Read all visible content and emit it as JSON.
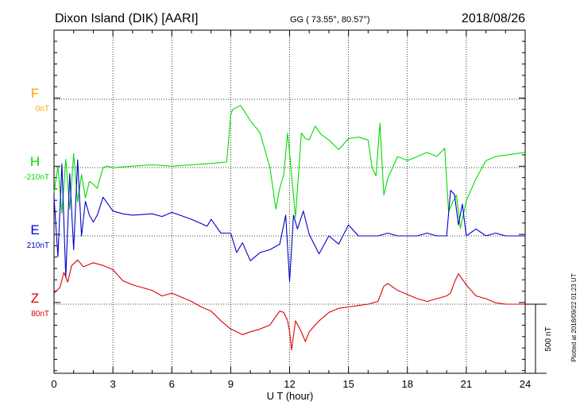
{
  "header": {
    "station": "Dixon Island (DIK)  [AARI]",
    "coords": "GG ( 73.55°,  80.57°)",
    "date": "2018/08/26"
  },
  "footer": {
    "plotted": "Plotted at 2018/09/22 01:23 UT"
  },
  "chart_data": {
    "type": "line",
    "title": "Dixon Island (DIK)  [AARI]",
    "xlabel": "U T (hour)",
    "xlim": [
      0,
      24
    ],
    "xticks": [
      0,
      3,
      6,
      9,
      12,
      15,
      18,
      21,
      24
    ],
    "scale_bar": {
      "label": "500 nT",
      "value_nT": 500
    },
    "grid": true,
    "panel_span_nT": 1500,
    "series": [
      {
        "name": "F",
        "baseline_label": "0nT",
        "color": "#ffa500",
        "x": [],
        "y": []
      },
      {
        "name": "H",
        "baseline_label": "-210nT",
        "color": "#00dd00",
        "x": [
          0,
          0.2,
          0.4,
          0.6,
          0.8,
          1.0,
          1.2,
          1.4,
          1.6,
          1.8,
          2.0,
          2.2,
          2.5,
          2.7,
          3.0,
          4.0,
          5.0,
          6.0,
          7.0,
          8.0,
          8.8,
          9.0,
          9.1,
          9.5,
          10.0,
          10.5,
          11.0,
          11.3,
          11.5,
          11.7,
          11.9,
          12.0,
          12.3,
          12.6,
          12.8,
          13.0,
          13.3,
          13.6,
          14.0,
          14.5,
          15.0,
          15.5,
          16.0,
          16.2,
          16.4,
          16.6,
          16.8,
          17.0,
          17.5,
          18.0,
          18.5,
          19.0,
          19.5,
          19.9,
          20.1,
          20.3,
          20.5,
          20.7,
          21.0,
          21.5,
          22.0,
          22.5,
          23.0,
          23.5,
          24.0
        ],
        "y": [
          -180,
          10,
          -330,
          60,
          -300,
          100,
          -250,
          -50,
          -220,
          -100,
          -120,
          -150,
          0,
          10,
          0,
          10,
          20,
          10,
          20,
          30,
          40,
          380,
          420,
          450,
          340,
          250,
          0,
          -300,
          -150,
          -50,
          250,
          100,
          -360,
          250,
          210,
          200,
          300,
          240,
          200,
          130,
          210,
          220,
          200,
          0,
          -60,
          320,
          -200,
          -80,
          80,
          50,
          80,
          110,
          80,
          140,
          -320,
          -250,
          -200,
          -440,
          -240,
          -80,
          50,
          80,
          90,
          100,
          110
        ]
      },
      {
        "name": "E",
        "baseline_label": "210nT",
        "color": "#0000cc",
        "x": [
          0,
          0.2,
          0.4,
          0.6,
          0.8,
          1.0,
          1.2,
          1.4,
          1.6,
          1.8,
          2.0,
          2.2,
          2.5,
          3.0,
          3.5,
          4.0,
          5.0,
          5.5,
          6.0,
          7.0,
          7.8,
          8.0,
          8.5,
          9.0,
          9.3,
          9.6,
          10.0,
          10.5,
          11.0,
          11.5,
          11.8,
          12.0,
          12.2,
          12.4,
          12.7,
          13.0,
          13.5,
          14.0,
          14.5,
          15.0,
          15.5,
          16.0,
          16.5,
          17.0,
          17.5,
          18.0,
          18.5,
          19.0,
          19.5,
          19.8,
          20.0,
          20.2,
          20.4,
          20.6,
          20.8,
          21.0,
          21.5,
          22.0,
          22.5,
          23.0,
          23.5,
          24.0
        ],
        "y": [
          280,
          -150,
          520,
          -300,
          450,
          -100,
          550,
          0,
          250,
          150,
          100,
          150,
          280,
          180,
          160,
          150,
          160,
          140,
          170,
          120,
          70,
          120,
          20,
          20,
          -120,
          -50,
          -180,
          -120,
          -100,
          -60,
          150,
          -330,
          150,
          50,
          180,
          10,
          -130,
          0,
          -60,
          80,
          0,
          0,
          0,
          20,
          0,
          0,
          0,
          20,
          0,
          0,
          0,
          330,
          300,
          80,
          230,
          0,
          50,
          0,
          20,
          0,
          0,
          0
        ]
      },
      {
        "name": "Z",
        "baseline_label": "80nT",
        "color": "#dd0000",
        "x": [
          0,
          0.3,
          0.5,
          0.7,
          0.9,
          1.2,
          1.5,
          2.0,
          2.5,
          3.0,
          3.5,
          4.0,
          4.5,
          5.0,
          5.5,
          6.0,
          6.5,
          7.0,
          7.5,
          8.0,
          8.5,
          9.0,
          9.3,
          9.6,
          10.0,
          10.5,
          11.0,
          11.5,
          11.7,
          11.9,
          12.0,
          12.1,
          12.3,
          12.6,
          12.8,
          13.0,
          13.5,
          14.0,
          14.5,
          15.0,
          15.5,
          16.0,
          16.5,
          16.8,
          17.0,
          17.5,
          18.0,
          18.5,
          19.0,
          19.5,
          20.0,
          20.2,
          20.4,
          20.6,
          21.0,
          21.5,
          22.0,
          22.5,
          23.0,
          23.5,
          24.0
        ],
        "y": [
          80,
          120,
          230,
          160,
          280,
          320,
          270,
          300,
          280,
          250,
          170,
          140,
          120,
          100,
          60,
          80,
          50,
          20,
          -20,
          -50,
          -120,
          -180,
          -200,
          -220,
          -200,
          -180,
          -150,
          -50,
          -60,
          -120,
          -200,
          -330,
          -120,
          -200,
          -270,
          -200,
          -120,
          -60,
          -30,
          -20,
          -10,
          0,
          20,
          130,
          150,
          100,
          70,
          40,
          20,
          40,
          60,
          80,
          160,
          220,
          140,
          60,
          40,
          10,
          0,
          0,
          0
        ]
      }
    ]
  }
}
